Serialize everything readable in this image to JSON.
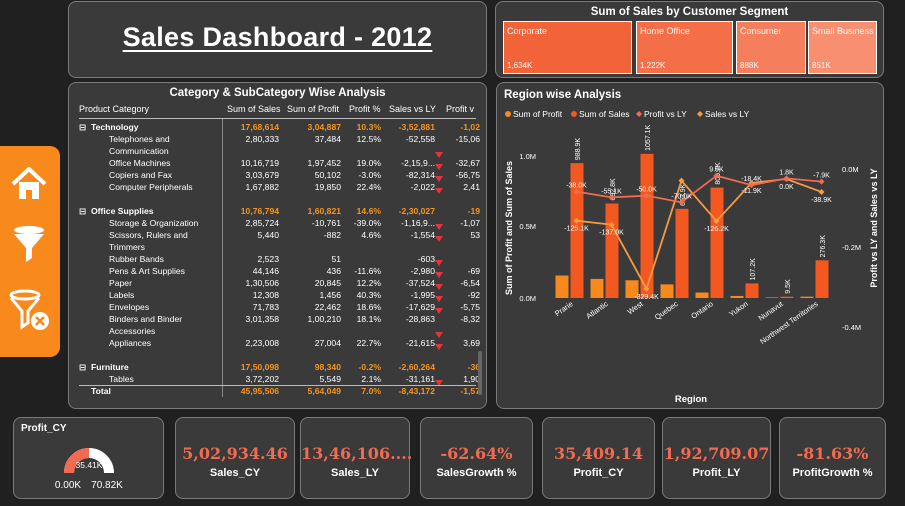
{
  "dashboard": {
    "title": "Sales Dashboard - 2012"
  },
  "segment": {
    "title": "Sum of Sales by Customer Segment",
    "items": [
      {
        "name": "Corporate",
        "value": "1,634K",
        "color": "#f2633a"
      },
      {
        "name": "Home Office",
        "value": "1,222K",
        "color": "#f46e48"
      },
      {
        "name": "Consumer",
        "value": "888K",
        "color": "#f57f5c"
      },
      {
        "name": "Small Business",
        "value": "851K",
        "color": "#f78f70"
      }
    ]
  },
  "category_table": {
    "title": "Category & SubCategory Wise Analysis",
    "headers": [
      "Product Category",
      "Sum of Sales",
      "Sum of Profit",
      "Profit %",
      "Sales vs LY",
      "Profit v"
    ],
    "rows": [
      {
        "k": "cat",
        "label": "Technology",
        "v": [
          "17,68,614",
          "3,04,887",
          "10.3%",
          "-3,52,881",
          "-1,02"
        ],
        "arrow": false
      },
      {
        "k": "sub",
        "label": "Telephones and",
        "v": [
          "2,80,333",
          "37,484",
          "12.5%",
          "-52,558",
          "-15,06"
        ],
        "arrow": false
      },
      {
        "k": "sub",
        "label": "Communication",
        "v": [
          "",
          "",
          "",
          "",
          ""
        ],
        "arrow": true
      },
      {
        "k": "sub",
        "label": "Office Machines",
        "v": [
          "10,16,719",
          "1,97,452",
          "19.0%",
          "-2,15,9...",
          "-32,67"
        ],
        "arrow": true
      },
      {
        "k": "sub",
        "label": "Copiers and Fax",
        "v": [
          "3,03,679",
          "50,102",
          "-3.0%",
          "-82,314",
          "-56,75"
        ],
        "arrow": true
      },
      {
        "k": "sub",
        "label": "Computer Peripherals",
        "v": [
          "1,67,882",
          "19,850",
          "22.4%",
          "-2,022",
          "2,41"
        ],
        "arrow": true
      },
      {
        "k": "gap",
        "label": "",
        "v": [
          "",
          "",
          "",
          "",
          ""
        ],
        "arrow": false
      },
      {
        "k": "cat",
        "label": "Office Supplies",
        "v": [
          "10,76,794",
          "1,60,821",
          "14.6%",
          "-2,30,027",
          "-19"
        ],
        "arrow": false
      },
      {
        "k": "sub",
        "label": "Storage & Organization",
        "v": [
          "2,85,724",
          "-10,761",
          "-39.0%",
          "-1,16,9...",
          "-1,07"
        ],
        "arrow": true
      },
      {
        "k": "sub",
        "label": "Scissors, Rulers and",
        "v": [
          "5,440",
          "-882",
          "4.6%",
          "-1,554",
          "53"
        ],
        "arrow": true
      },
      {
        "k": "sub",
        "label": "Trimmers",
        "v": [
          "",
          "",
          "",
          "",
          ""
        ],
        "arrow": false
      },
      {
        "k": "sub",
        "label": "Rubber Bands",
        "v": [
          "2,523",
          "51",
          "",
          "-603",
          ""
        ],
        "arrow": true
      },
      {
        "k": "sub",
        "label": "Pens & Art Supplies",
        "v": [
          "44,146",
          "436",
          "-11.6%",
          "-2,980",
          "-69"
        ],
        "arrow": true
      },
      {
        "k": "sub",
        "label": "Paper",
        "v": [
          "1,30,506",
          "20,845",
          "12.2%",
          "-37,524",
          "-6,54"
        ],
        "arrow": true
      },
      {
        "k": "sub",
        "label": "Labels",
        "v": [
          "12,308",
          "1,456",
          "40.3%",
          "-1,995",
          "-92"
        ],
        "arrow": true
      },
      {
        "k": "sub",
        "label": "Envelopes",
        "v": [
          "71,783",
          "22,462",
          "18.6%",
          "-17,629",
          "-5,75"
        ],
        "arrow": true
      },
      {
        "k": "sub",
        "label": "Binders and Binder",
        "v": [
          "3,01,358",
          "1,00,210",
          "18.1%",
          "-28,863",
          "-8,32"
        ],
        "arrow": false
      },
      {
        "k": "sub",
        "label": "Accessories",
        "v": [
          "",
          "",
          "",
          "",
          ""
        ],
        "arrow": true
      },
      {
        "k": "sub",
        "label": "Appliances",
        "v": [
          "2,23,008",
          "27,004",
          "22.7%",
          "-21,615",
          "3,69"
        ],
        "arrow": true
      },
      {
        "k": "gap",
        "label": "",
        "v": [
          "",
          "",
          "",
          "",
          ""
        ],
        "arrow": false
      },
      {
        "k": "cat",
        "label": "Furniture",
        "v": [
          "17,50,098",
          "98,340",
          "-0.2%",
          "-2,60,264",
          "-36"
        ],
        "arrow": false
      },
      {
        "k": "sub",
        "label": "Tables",
        "v": [
          "3,72,202",
          "5,549",
          "2.1%",
          "-31,161",
          "1,90"
        ],
        "arrow": true
      },
      {
        "k": "total",
        "label": "Total",
        "v": [
          "45,95,506",
          "5,64,049",
          "7.0%",
          "-8,43,172",
          "-1,57"
        ],
        "arrow": false
      }
    ]
  },
  "region": {
    "title": "Region wise Analysis",
    "legend": [
      "Sum of Profit",
      "Sum of Sales",
      "Profit vs LY",
      "Sales vs LY"
    ],
    "y_left_label": "Sum of Profit and Sum of Sales",
    "y_right_label": "Profit vs LY and Sales vs LY",
    "x_label": "Region",
    "y_left_ticks": [
      "1.0M",
      "0.5M",
      "0.0M"
    ],
    "y_right_ticks": [
      "0.0M",
      "-0.2M",
      "-0.4M"
    ]
  },
  "chart_data": {
    "type": "bar",
    "categories": [
      "Prarie",
      "Atlantic",
      "West",
      "Quebec",
      "Ontario",
      "Yukon",
      "Nunavut",
      "Northwest Territories"
    ],
    "series": [
      {
        "name": "Sum of Profit",
        "kind": "bar",
        "color": "#f7891d",
        "values": [
          165000,
          140000,
          130000,
          100000,
          40000,
          15000,
          4000,
          10000
        ]
      },
      {
        "name": "Sum of Sales",
        "kind": "bar",
        "color": "#f2581f",
        "values": [
          988900,
          692800,
          1057100,
          653900,
          809700,
          107200,
          9500,
          276300
        ]
      },
      {
        "name": "Profit vs LY",
        "kind": "line",
        "color": "#f26a4f",
        "values": [
          -38000,
          -55100,
          -50000,
          -70000,
          9900,
          -18400,
          1800,
          -7900
        ]
      },
      {
        "name": "Sales vs LY",
        "kind": "line",
        "color": "#f79a45",
        "values": [
          -125100,
          -137000,
          -329400,
          -5000,
          -126200,
          -11900,
          0,
          -38900
        ]
      }
    ],
    "bar_labels": [
      "988.9K",
      "692.8K",
      "1057.1K",
      "653.9K",
      "809.7K",
      "107.2K",
      "9.5K",
      "276.3K"
    ],
    "profit_ly_labels": [
      "-38.0K",
      "-55.1K",
      "-50.0K",
      "-70.0K",
      "9.9K",
      "-18.4K",
      "1.8K",
      "-7.9K"
    ],
    "sales_ly_labels": [
      "-125.1K",
      "-137.0K",
      "-329.4K",
      "",
      "-126.2K",
      "-11.9K",
      "0.0K",
      "-38.9K"
    ],
    "ylim_left": [
      0,
      1100000
    ],
    "ylim_right": [
      -450000,
      60000
    ],
    "xlabel": "Region",
    "ylabel": "Sum of Profit and Sum of Sales",
    "ylabel_right": "Profit vs LY and Sales vs LY",
    "legend_position": "top-left"
  },
  "gauge": {
    "title": "Profit_CY",
    "value": "35.41K",
    "min": "0.00K",
    "max": "70.82K",
    "fraction": 0.5
  },
  "kpis": [
    {
      "value": "5,02,934.46",
      "label": "Sales_CY"
    },
    {
      "value": "13,46,106....",
      "label": "Sales_LY"
    },
    {
      "value": "-62.64%",
      "label": "SalesGrowth %"
    },
    {
      "value": "35,409.14",
      "label": "Profit_CY"
    },
    {
      "value": "1,92,709.07",
      "label": "Profit_LY"
    },
    {
      "value": "-81.63%",
      "label": "ProfitGrowth %"
    }
  ],
  "colors": {
    "accent": "#f7891d",
    "bar_sales": "#f2581f",
    "kpi_value": "#f26a4f",
    "arrow_down": "#e6353a"
  },
  "sidebar": {
    "icons": [
      "home-icon",
      "filter-icon",
      "clear-filter-icon"
    ]
  }
}
